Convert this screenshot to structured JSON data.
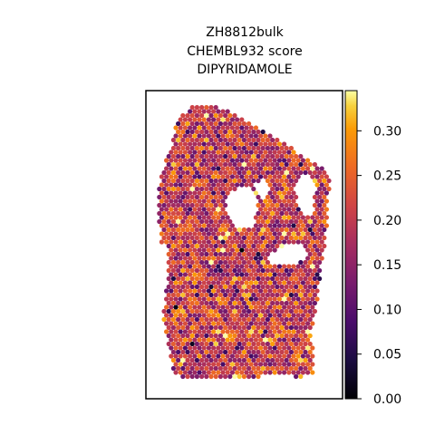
{
  "chart_data": {
    "type": "scatter",
    "title_lines": [
      "ZH8812bulk",
      "CHEMBL932 score",
      "DIPYRIDAMOLE"
    ],
    "xlabel": "",
    "ylabel": "",
    "colormap": "inferno",
    "colorbar": {
      "vmin": 0.0,
      "vmax": 0.345,
      "ticks": [
        "0.00",
        "0.05",
        "0.10",
        "0.15",
        "0.20",
        "0.25",
        "0.30"
      ],
      "tick_values": [
        0.0,
        0.05,
        0.1,
        0.15,
        0.2,
        0.25,
        0.3
      ]
    },
    "grid": false,
    "legend": "none",
    "value_distribution": {
      "mean": 0.2,
      "spread": 0.06
    }
  }
}
